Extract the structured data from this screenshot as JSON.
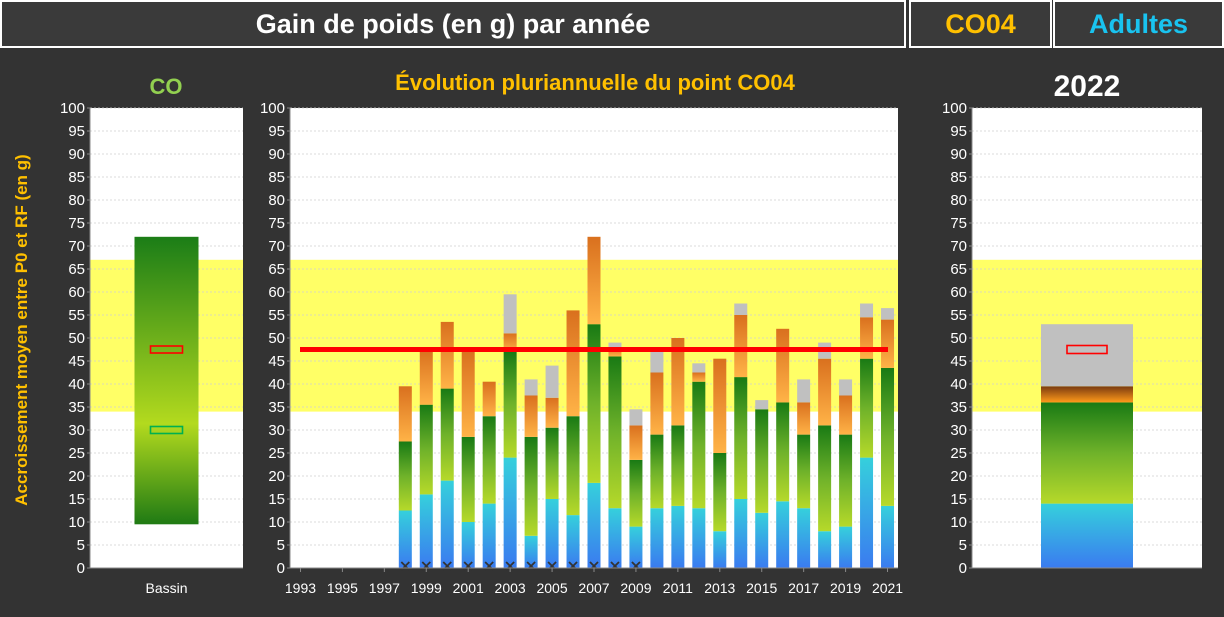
{
  "header": {
    "title": "Gain de poids (en g) par année",
    "point": "CO04",
    "category": "Adultes"
  },
  "colors": {
    "band": "#ffff66",
    "median_line": "#ff0000",
    "header_point": "#ffc000",
    "header_category": "#19c3ef"
  },
  "chart_data": [
    {
      "type": "bar",
      "title": "CO",
      "ylabel": "Accroissement  moyen entre P0 et RF (en g)",
      "ylim": [
        0,
        100
      ],
      "yticks": [
        0,
        5,
        10,
        15,
        20,
        25,
        30,
        35,
        40,
        45,
        50,
        55,
        60,
        65,
        70,
        75,
        80,
        85,
        90,
        95,
        100
      ],
      "categories": [
        "Bassin"
      ],
      "reference_band": [
        34,
        67
      ],
      "range_bar": {
        "low": 9.5,
        "high": 72
      },
      "markers": [
        {
          "value": 47.5,
          "color": "#ff0000"
        },
        {
          "value": 30,
          "color": "#00b050"
        }
      ]
    },
    {
      "type": "bar",
      "stacked": true,
      "title": "Évolution pluriannuelle du point CO04",
      "ylim": [
        0,
        100
      ],
      "yticks": [
        0,
        5,
        10,
        15,
        20,
        25,
        30,
        35,
        40,
        45,
        50,
        55,
        60,
        65,
        70,
        75,
        80,
        85,
        90,
        95,
        100
      ],
      "xtick_labels": [
        "1993",
        "1995",
        "1997",
        "1999",
        "2001",
        "2003",
        "2005",
        "2007",
        "2009",
        "2011",
        "2013",
        "2015",
        "2017",
        "2019",
        "2021"
      ],
      "x": [
        1998,
        1999,
        2000,
        2001,
        2002,
        2003,
        2004,
        2005,
        2006,
        2007,
        2008,
        2009,
        2010,
        2011,
        2012,
        2013,
        2014,
        2015,
        2016,
        2017,
        2018,
        2019,
        2020,
        2021
      ],
      "reference_band": [
        34,
        67
      ],
      "reference_line": 47.5,
      "series": [
        {
          "key": "blue",
          "values": [
            12.5,
            16,
            19,
            10,
            14,
            24,
            7,
            15,
            11.5,
            18.5,
            13,
            9,
            13,
            13.5,
            13,
            8,
            15,
            12,
            14.5,
            13,
            8,
            9,
            24,
            13.5
          ]
        },
        {
          "key": "green",
          "values": [
            15,
            19.5,
            20,
            18.5,
            19,
            23,
            21.5,
            15.5,
            21.5,
            34.5,
            33,
            14.5,
            16,
            17.5,
            27.5,
            17,
            26.5,
            22.5,
            21.5,
            16,
            23,
            20,
            21.5,
            30
          ]
        },
        {
          "key": "orange",
          "values": [
            12,
            12,
            14.5,
            19,
            7.5,
            4,
            9,
            6.5,
            23,
            19,
            2,
            7.5,
            13.5,
            19,
            2,
            20.5,
            13.5,
            0,
            16,
            7,
            14.5,
            8.5,
            9,
            10.5
          ]
        },
        {
          "key": "grey",
          "values": [
            0,
            0,
            0,
            0,
            0,
            8.5,
            3.5,
            7,
            0,
            0,
            1,
            3.5,
            4.5,
            0,
            2,
            0,
            2.5,
            2,
            0,
            5,
            3.5,
            3.5,
            3,
            2.5
          ]
        }
      ],
      "markers_at_zero": [
        1998,
        1999,
        2000,
        2001,
        2002,
        2003,
        2004,
        2005,
        2006,
        2007,
        2008,
        2009
      ]
    },
    {
      "type": "bar",
      "stacked": true,
      "title": "2022",
      "ylim": [
        0,
        100
      ],
      "yticks": [
        0,
        5,
        10,
        15,
        20,
        25,
        30,
        35,
        40,
        45,
        50,
        55,
        60,
        65,
        70,
        75,
        80,
        85,
        90,
        95,
        100
      ],
      "reference_band": [
        34,
        67
      ],
      "series": [
        {
          "key": "blue",
          "values": [
            14
          ]
        },
        {
          "key": "green",
          "values": [
            22
          ]
        },
        {
          "key": "orange",
          "values": [
            3.5
          ]
        },
        {
          "key": "grey",
          "values": [
            13.5
          ]
        }
      ],
      "marker": {
        "value": 47.5,
        "color": "#ff0000"
      }
    }
  ]
}
